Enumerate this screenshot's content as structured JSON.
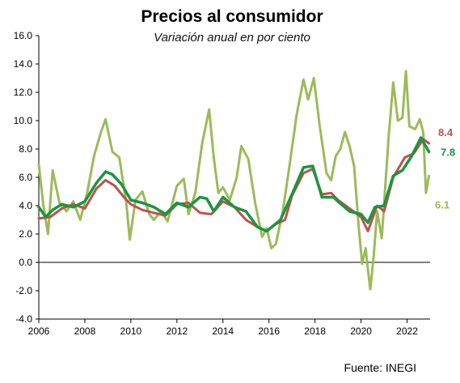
{
  "chart_data": {
    "type": "line",
    "title": "Precios al consumidor",
    "subtitle": "Variación anual en por ciento",
    "source": "Fuente: INEGI",
    "xlabel": "",
    "ylabel": "",
    "xlim": [
      2006,
      2023
    ],
    "ylim": [
      -4,
      16
    ],
    "x_ticks": [
      "2006",
      "2008",
      "2010",
      "2012",
      "2014",
      "2016",
      "2018",
      "2020",
      "2022"
    ],
    "y_ticks": [
      "16.0",
      "14.0",
      "12.0",
      "10.0",
      "8.0",
      "6.0",
      "4.0",
      "2.0",
      "0.0",
      "-2.0",
      "-4.0"
    ],
    "grid": false,
    "colors": {
      "headline": "#c0504d",
      "core": "#1a9641",
      "non_core": "#9bbb59",
      "axis": "#000000"
    },
    "series": [
      {
        "key": "headline",
        "end_label": "8.4",
        "points": [
          [
            2006.0,
            3.1
          ],
          [
            2006.5,
            3.2
          ],
          [
            2007.0,
            3.8
          ],
          [
            2007.5,
            4.1
          ],
          [
            2008.0,
            3.8
          ],
          [
            2008.5,
            5.2
          ],
          [
            2008.9,
            5.8
          ],
          [
            2009.3,
            5.4
          ],
          [
            2009.7,
            4.6
          ],
          [
            2010.0,
            4.1
          ],
          [
            2010.5,
            3.7
          ],
          [
            2011.0,
            3.5
          ],
          [
            2011.5,
            3.3
          ],
          [
            2012.0,
            4.1
          ],
          [
            2012.5,
            4.2
          ],
          [
            2013.0,
            3.5
          ],
          [
            2013.5,
            3.4
          ],
          [
            2014.0,
            4.3
          ],
          [
            2014.5,
            3.9
          ],
          [
            2015.0,
            3.0
          ],
          [
            2015.5,
            2.5
          ],
          [
            2015.9,
            2.2
          ],
          [
            2016.3,
            2.7
          ],
          [
            2016.7,
            3.0
          ],
          [
            2017.0,
            4.7
          ],
          [
            2017.5,
            6.3
          ],
          [
            2017.9,
            6.6
          ],
          [
            2018.3,
            4.8
          ],
          [
            2018.7,
            4.9
          ],
          [
            2019.0,
            4.4
          ],
          [
            2019.5,
            3.8
          ],
          [
            2020.0,
            3.2
          ],
          [
            2020.3,
            2.2
          ],
          [
            2020.7,
            4.0
          ],
          [
            2021.0,
            3.6
          ],
          [
            2021.4,
            6.0
          ],
          [
            2021.9,
            7.4
          ],
          [
            2022.3,
            7.7
          ],
          [
            2022.7,
            8.7
          ],
          [
            2022.95,
            8.4
          ]
        ]
      },
      {
        "key": "core",
        "end_label": "7.8",
        "points": [
          [
            2006.0,
            3.9
          ],
          [
            2006.3,
            3.2
          ],
          [
            2006.6,
            3.7
          ],
          [
            2007.0,
            4.1
          ],
          [
            2007.5,
            3.9
          ],
          [
            2008.0,
            4.3
          ],
          [
            2008.5,
            5.6
          ],
          [
            2008.9,
            6.4
          ],
          [
            2009.2,
            6.2
          ],
          [
            2009.6,
            5.5
          ],
          [
            2010.0,
            4.4
          ],
          [
            2010.5,
            4.2
          ],
          [
            2011.0,
            3.9
          ],
          [
            2011.5,
            3.4
          ],
          [
            2012.0,
            4.2
          ],
          [
            2012.5,
            3.9
          ],
          [
            2013.0,
            4.6
          ],
          [
            2013.3,
            4.5
          ],
          [
            2013.6,
            3.6
          ],
          [
            2014.0,
            4.6
          ],
          [
            2014.5,
            3.9
          ],
          [
            2015.0,
            3.6
          ],
          [
            2015.5,
            2.5
          ],
          [
            2015.9,
            2.2
          ],
          [
            2016.5,
            3.0
          ],
          [
            2017.0,
            4.8
          ],
          [
            2017.5,
            6.7
          ],
          [
            2017.9,
            6.8
          ],
          [
            2018.3,
            4.6
          ],
          [
            2018.8,
            4.6
          ],
          [
            2019.0,
            4.3
          ],
          [
            2019.5,
            3.6
          ],
          [
            2020.0,
            3.4
          ],
          [
            2020.3,
            2.8
          ],
          [
            2020.6,
            3.9
          ],
          [
            2021.0,
            4.0
          ],
          [
            2021.4,
            6.1
          ],
          [
            2021.8,
            6.5
          ],
          [
            2022.2,
            7.5
          ],
          [
            2022.6,
            8.8
          ],
          [
            2022.95,
            7.8
          ]
        ]
      },
      {
        "key": "non_core",
        "end_label": "6.1",
        "points": [
          [
            2006.0,
            6.9
          ],
          [
            2006.2,
            4.0
          ],
          [
            2006.4,
            2.0
          ],
          [
            2006.6,
            6.5
          ],
          [
            2006.9,
            4.2
          ],
          [
            2007.2,
            3.6
          ],
          [
            2007.5,
            4.3
          ],
          [
            2007.8,
            3.0
          ],
          [
            2008.1,
            4.9
          ],
          [
            2008.4,
            7.5
          ],
          [
            2008.7,
            9.2
          ],
          [
            2008.9,
            10.1
          ],
          [
            2009.2,
            7.8
          ],
          [
            2009.5,
            7.4
          ],
          [
            2009.8,
            4.2
          ],
          [
            2009.95,
            1.6
          ],
          [
            2010.2,
            4.4
          ],
          [
            2010.5,
            5.0
          ],
          [
            2010.8,
            3.4
          ],
          [
            2011.0,
            3.0
          ],
          [
            2011.3,
            3.6
          ],
          [
            2011.6,
            2.9
          ],
          [
            2012.0,
            5.4
          ],
          [
            2012.3,
            5.9
          ],
          [
            2012.5,
            3.4
          ],
          [
            2012.8,
            4.9
          ],
          [
            2013.1,
            8.4
          ],
          [
            2013.4,
            10.8
          ],
          [
            2013.6,
            7.4
          ],
          [
            2013.8,
            4.9
          ],
          [
            2014.0,
            5.3
          ],
          [
            2014.3,
            4.4
          ],
          [
            2014.6,
            6.0
          ],
          [
            2014.8,
            8.2
          ],
          [
            2015.1,
            7.3
          ],
          [
            2015.4,
            4.2
          ],
          [
            2015.7,
            1.8
          ],
          [
            2015.9,
            2.4
          ],
          [
            2016.1,
            1.0
          ],
          [
            2016.3,
            1.3
          ],
          [
            2016.6,
            3.6
          ],
          [
            2016.9,
            6.9
          ],
          [
            2017.2,
            10.4
          ],
          [
            2017.5,
            12.9
          ],
          [
            2017.7,
            11.5
          ],
          [
            2017.95,
            13.0
          ],
          [
            2018.2,
            9.7
          ],
          [
            2018.5,
            6.3
          ],
          [
            2018.7,
            5.8
          ],
          [
            2018.9,
            7.5
          ],
          [
            2019.1,
            8.0
          ],
          [
            2019.3,
            9.2
          ],
          [
            2019.5,
            8.2
          ],
          [
            2019.7,
            6.8
          ],
          [
            2019.9,
            2.5
          ],
          [
            2020.05,
            -0.1
          ],
          [
            2020.2,
            1.0
          ],
          [
            2020.3,
            -0.5
          ],
          [
            2020.4,
            -1.9
          ],
          [
            2020.55,
            0.4
          ],
          [
            2020.7,
            3.6
          ],
          [
            2020.9,
            1.7
          ],
          [
            2021.2,
            8.9
          ],
          [
            2021.4,
            12.7
          ],
          [
            2021.6,
            10.0
          ],
          [
            2021.8,
            10.2
          ],
          [
            2021.95,
            13.5
          ],
          [
            2022.1,
            9.6
          ],
          [
            2022.35,
            9.4
          ],
          [
            2022.55,
            10.1
          ],
          [
            2022.7,
            9.2
          ],
          [
            2022.82,
            4.9
          ],
          [
            2022.95,
            6.1
          ]
        ]
      }
    ]
  }
}
